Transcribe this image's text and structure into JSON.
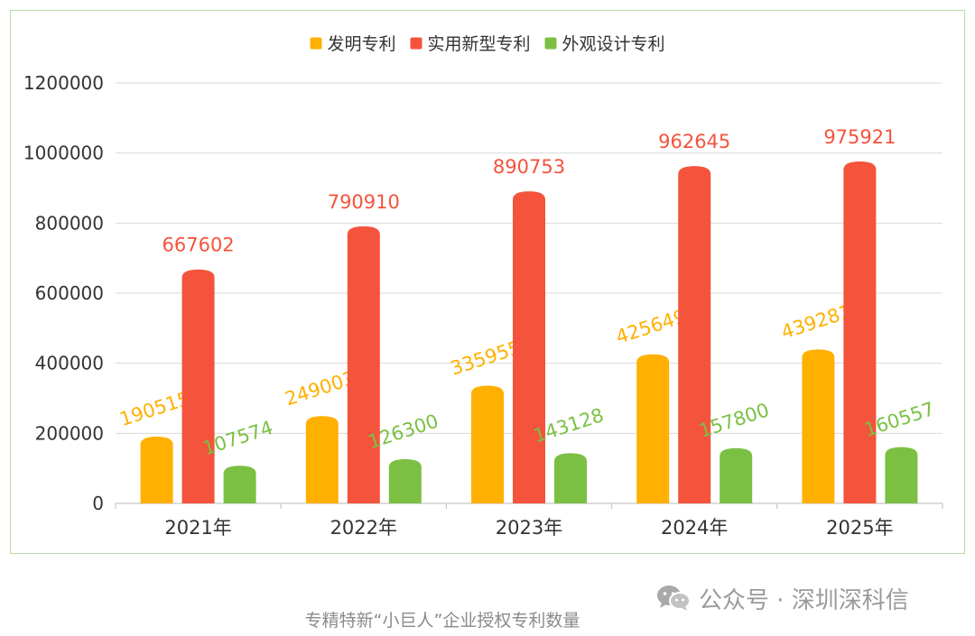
{
  "chart_data": {
    "type": "bar",
    "title": "",
    "xlabel": "",
    "ylabel": "",
    "categories": [
      "2021年",
      "2022年",
      "2023年",
      "2024年",
      "2025年"
    ],
    "series": [
      {
        "name": "发明专利",
        "color": "#ffb000",
        "values": [
          190515,
          249003,
          335955,
          425649,
          439281
        ]
      },
      {
        "name": "实用新型专利",
        "color": "#f4533c",
        "values": [
          667602,
          790910,
          890753,
          962645,
          975921
        ]
      },
      {
        "name": "外观设计专利",
        "color": "#7bc043",
        "values": [
          107574,
          126300,
          143128,
          157800,
          160557
        ]
      }
    ],
    "ylim": [
      0,
      1200000
    ],
    "yticks": [
      0,
      200000,
      400000,
      600000,
      800000,
      1000000,
      1200000
    ],
    "grid": true,
    "legend": "top-center"
  },
  "caption": "专精特新“小巨人”企业授权专利数量",
  "watermark": {
    "icon": "wechat-icon",
    "text": "公众号 · 深圳深科信"
  }
}
